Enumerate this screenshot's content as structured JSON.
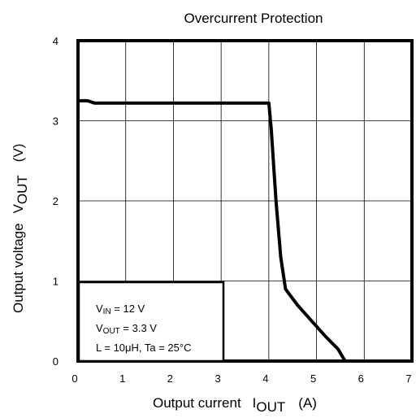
{
  "chart_data": {
    "type": "line",
    "title": "Overcurrent Protection",
    "xlabel": {
      "text": "Output current",
      "symbol_main": "I",
      "symbol_sub": "OUT",
      "unit": "(A)"
    },
    "ylabel": {
      "text": "Output voltage",
      "symbol_main": "V",
      "symbol_sub": "OUT",
      "unit": "(V)"
    },
    "xlim": [
      0,
      7
    ],
    "ylim": [
      0,
      4
    ],
    "xticks": [
      "0",
      "1",
      "2",
      "3",
      "4",
      "5",
      "6",
      "7"
    ],
    "yticks": [
      "0",
      "1",
      "2",
      "3",
      "4"
    ],
    "grid": true,
    "series": [
      {
        "x": [
          0,
          0.2,
          0.35,
          1.0,
          2.0,
          3.0,
          4.0,
          4.05,
          4.15,
          4.25,
          4.35,
          4.6,
          4.9,
          5.2,
          5.45,
          5.55,
          5.6,
          7.0
        ],
        "y": [
          3.25,
          3.25,
          3.22,
          3.22,
          3.22,
          3.22,
          3.22,
          2.9,
          2.0,
          1.3,
          0.9,
          0.7,
          0.5,
          0.3,
          0.15,
          0.05,
          0.0,
          0.0
        ]
      }
    ],
    "conditions": {
      "vin": {
        "main": "V",
        "sub": "IN",
        "rest": " = 12 V"
      },
      "vout": {
        "main": "V",
        "sub": "OUT",
        "rest": " = 3.3 V"
      },
      "other": "L = 10μH,   Ta = 25°C"
    }
  }
}
